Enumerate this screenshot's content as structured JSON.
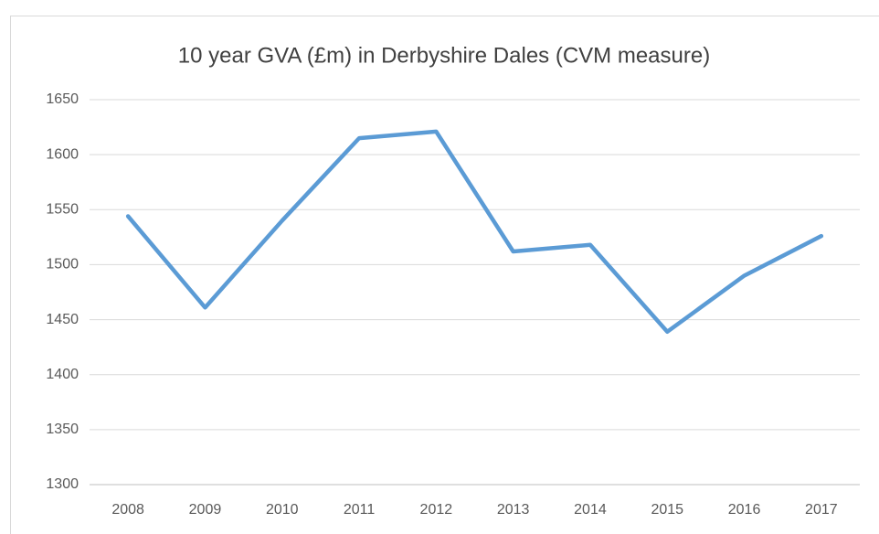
{
  "chart_data": {
    "type": "line",
    "title": "10 year GVA (£m) in Derbyshire Dales (CVM measure)",
    "categories": [
      "2008",
      "2009",
      "2010",
      "2011",
      "2012",
      "2013",
      "2014",
      "2015",
      "2016",
      "2017"
    ],
    "series": [
      {
        "color": "#5b9bd5",
        "values": [
          1544,
          1461,
          1540,
          1615,
          1621,
          1512,
          1518,
          1439,
          1490,
          1526
        ]
      }
    ],
    "ylim": [
      1300,
      1650
    ],
    "yticks": [
      1300,
      1350,
      1400,
      1450,
      1500,
      1550,
      1600,
      1650
    ],
    "grid": true
  }
}
